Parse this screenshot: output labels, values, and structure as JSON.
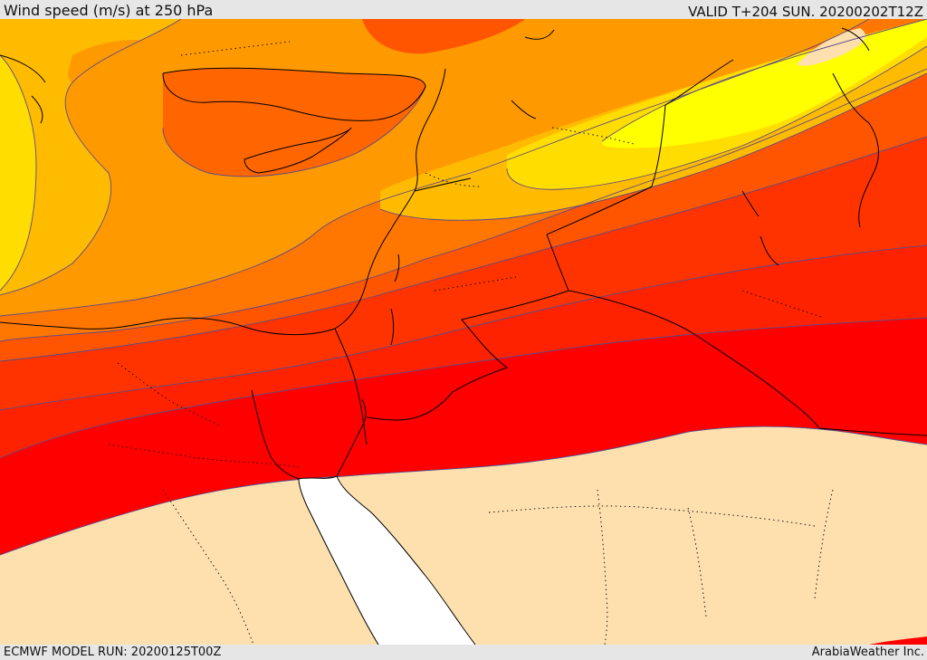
{
  "header": {
    "title": "Wind speed (m/s) at 250 hPa",
    "valid": "VALID T+204 SUN. 20200202T12Z"
  },
  "footer": {
    "model_run": "ECMWF MODEL RUN: 20200125T00Z",
    "credit": "ArabiaWeather Inc."
  },
  "map": {
    "variable": "wind speed",
    "level_hpa": 250,
    "units": "m/s",
    "colors": {
      "yellow": "#ffff00",
      "gold": "#ffdd00",
      "amber": "#ffbb00",
      "light_orange": "#ff9900",
      "orange": "#ff7700",
      "dark_orange": "#ff5500",
      "red_orange": "#ff3300",
      "bright_red_orange": "#ff2200",
      "red": "#ff0000",
      "calm_bisque": "#fde0ae",
      "sea_white": "#ffffff",
      "contour_line": "#5a4a8a",
      "border_line": "#000000"
    }
  }
}
